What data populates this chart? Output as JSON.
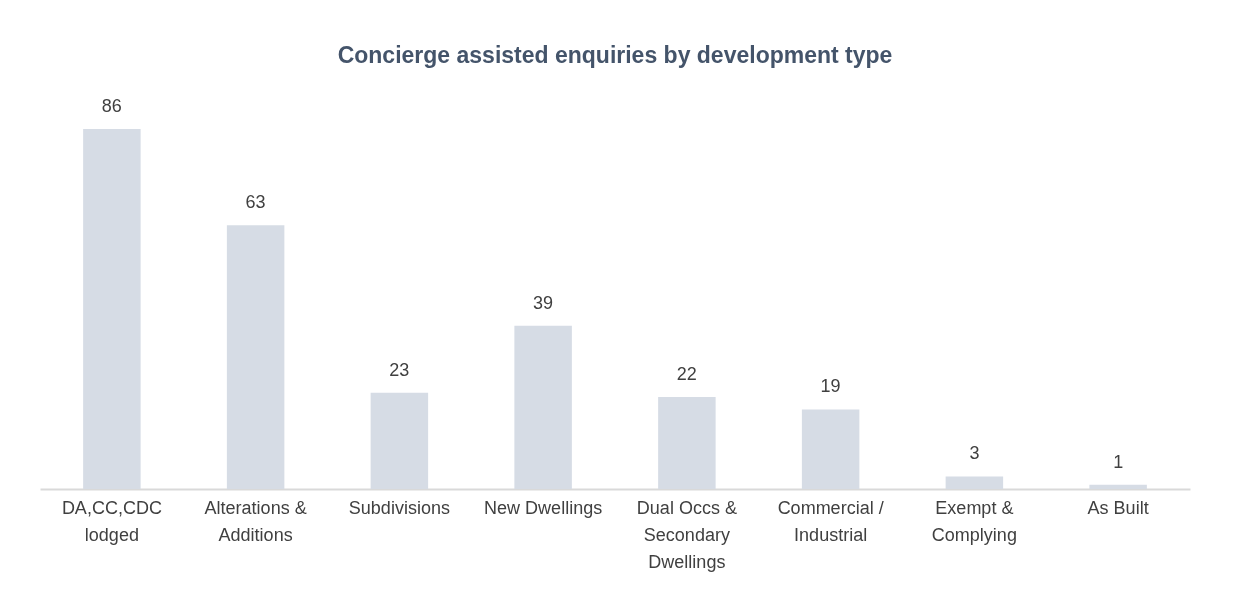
{
  "chart_data": {
    "type": "bar",
    "title": "Concierge assisted enquiries by development type",
    "categories": [
      "DA,CC,CDC lodged",
      "Alterations & Additions",
      "Subdivisions",
      "New Dwellings",
      "Dual Occs & Secondary Dwellings",
      "Commercial / Industrial",
      "Exempt & Complying",
      "As Built"
    ],
    "values": [
      86,
      63,
      23,
      39,
      22,
      19,
      3,
      1
    ],
    "color": "#d6dce5",
    "data_labels": true
  }
}
